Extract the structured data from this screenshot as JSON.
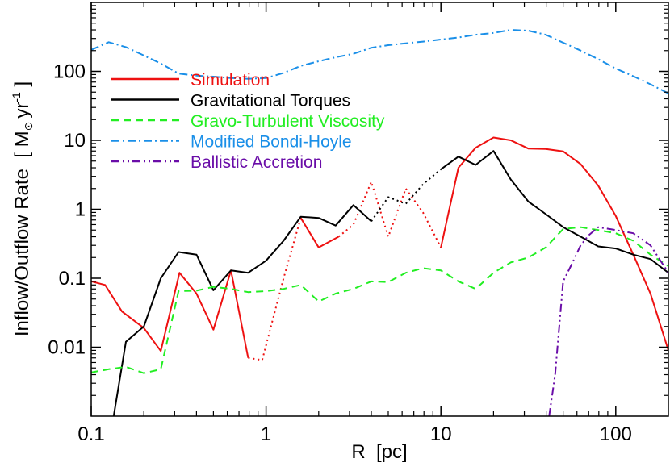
{
  "chart_data": {
    "type": "line",
    "xlabel": "R  [pc]",
    "ylabel_main": "Inflow/Outflow Rate  [ M",
    "ylabel_unit_tail": "yr",
    "ylabel_exponent": "-1",
    "ylabel_close": " ]",
    "xscale": "log",
    "yscale": "log",
    "xlim": [
      0.1,
      200
    ],
    "ylim": [
      0.001,
      1000
    ],
    "x_ticks": [
      {
        "value": 0.1,
        "label": "0.1"
      },
      {
        "value": 1,
        "label": "1"
      },
      {
        "value": 10,
        "label": "10"
      },
      {
        "value": 100,
        "label": "100"
      }
    ],
    "y_ticks": [
      {
        "value": 0.01,
        "label": "0.01"
      },
      {
        "value": 0.1,
        "label": "0.1"
      },
      {
        "value": 1,
        "label": "1"
      },
      {
        "value": 10,
        "label": "10"
      },
      {
        "value": 100,
        "label": "100"
      }
    ],
    "legend_position": "top-left",
    "grid": false,
    "series": [
      {
        "name": "Simulation",
        "color": "#ee1111",
        "dash": "solid",
        "segments": [
          {
            "style": "solid",
            "points": [
              [
                0.1,
                0.09
              ],
              [
                0.12,
                0.08
              ],
              [
                0.15,
                0.033
              ],
              [
                0.2,
                0.019
              ],
              [
                0.25,
                0.0088
              ],
              [
                0.32,
                0.12
              ],
              [
                0.4,
                0.06
              ],
              [
                0.5,
                0.018
              ],
              [
                0.63,
                0.13
              ],
              [
                0.79,
                0.007
              ]
            ]
          },
          {
            "style": "dotted",
            "points": [
              [
                0.79,
                0.007
              ],
              [
                0.95,
                0.0065
              ],
              [
                1.26,
                0.1
              ],
              [
                1.58,
                0.75
              ]
            ]
          },
          {
            "style": "solid",
            "points": [
              [
                1.58,
                0.75
              ],
              [
                2.0,
                0.28
              ],
              [
                2.6,
                0.4
              ]
            ]
          },
          {
            "style": "dotted",
            "points": [
              [
                2.6,
                0.4
              ],
              [
                3.16,
                0.6
              ],
              [
                4.0,
                2.5
              ],
              [
                5.0,
                0.4
              ],
              [
                6.3,
                2.0
              ],
              [
                7.9,
                0.9
              ],
              [
                10.0,
                0.28
              ]
            ]
          },
          {
            "style": "solid",
            "points": [
              [
                10.0,
                0.28
              ],
              [
                12.6,
                4.0
              ],
              [
                15.8,
                7.8
              ],
              [
                20.0,
                11.0
              ],
              [
                25.1,
                10.0
              ],
              [
                31.6,
                7.6
              ],
              [
                39.8,
                7.5
              ],
              [
                50.1,
                6.9
              ],
              [
                63.1,
                4.5
              ],
              [
                79.4,
                2.2
              ],
              [
                100,
                0.8
              ],
              [
                126,
                0.22
              ],
              [
                158,
                0.06
              ],
              [
                200,
                0.009
              ]
            ]
          }
        ]
      },
      {
        "name": "Gravitational Torques",
        "color": "#000000",
        "dash": "solid",
        "segments": [
          {
            "style": "solid",
            "points": [
              [
                0.13,
                0.0006
              ],
              [
                0.158,
                0.012
              ],
              [
                0.2,
                0.02
              ],
              [
                0.25,
                0.1
              ],
              [
                0.316,
                0.24
              ],
              [
                0.4,
                0.22
              ],
              [
                0.5,
                0.067
              ],
              [
                0.63,
                0.13
              ],
              [
                0.79,
                0.12
              ],
              [
                1.0,
                0.18
              ],
              [
                1.26,
                0.35
              ],
              [
                1.58,
                0.78
              ],
              [
                2.0,
                0.75
              ],
              [
                2.5,
                0.58
              ],
              [
                3.16,
                1.15
              ],
              [
                4.0,
                0.67
              ]
            ]
          },
          {
            "style": "dotted",
            "points": [
              [
                4.0,
                0.67
              ],
              [
                5.0,
                1.5
              ],
              [
                6.3,
                1.2
              ],
              [
                7.9,
                2.3
              ],
              [
                10.0,
                3.8
              ]
            ]
          },
          {
            "style": "solid",
            "points": [
              [
                10.0,
                3.8
              ],
              [
                12.6,
                5.8
              ],
              [
                15.8,
                4.4
              ],
              [
                20.0,
                7.0
              ],
              [
                25.1,
                2.7
              ],
              [
                31.6,
                1.3
              ],
              [
                39.8,
                0.85
              ],
              [
                50.1,
                0.55
              ],
              [
                63.1,
                0.4
              ],
              [
                79.4,
                0.29
              ],
              [
                100,
                0.27
              ],
              [
                126,
                0.22
              ],
              [
                158,
                0.19
              ],
              [
                200,
                0.12
              ]
            ]
          }
        ]
      },
      {
        "name": "Gravo-Turbulent Viscosity",
        "color": "#22ee22",
        "dash": "dashed",
        "segments": [
          {
            "style": "dashed",
            "points": [
              [
                0.1,
                0.0043
              ],
              [
                0.126,
                0.0048
              ],
              [
                0.158,
                0.0052
              ],
              [
                0.2,
                0.0042
              ],
              [
                0.25,
                0.0048
              ],
              [
                0.316,
                0.065
              ],
              [
                0.4,
                0.066
              ],
              [
                0.5,
                0.075
              ],
              [
                0.63,
                0.07
              ],
              [
                0.79,
                0.063
              ],
              [
                1.0,
                0.065
              ],
              [
                1.26,
                0.07
              ],
              [
                1.58,
                0.08
              ],
              [
                2.0,
                0.046
              ],
              [
                2.5,
                0.06
              ],
              [
                3.16,
                0.07
              ],
              [
                4.0,
                0.09
              ],
              [
                5.0,
                0.088
              ],
              [
                6.3,
                0.12
              ],
              [
                7.9,
                0.14
              ],
              [
                10.0,
                0.13
              ],
              [
                12.6,
                0.09
              ],
              [
                15.8,
                0.07
              ],
              [
                20.0,
                0.12
              ],
              [
                25.1,
                0.17
              ],
              [
                31.6,
                0.2
              ],
              [
                39.8,
                0.28
              ],
              [
                50.1,
                0.52
              ],
              [
                63.1,
                0.55
              ],
              [
                79.4,
                0.5
              ],
              [
                100,
                0.45
              ],
              [
                126,
                0.35
              ],
              [
                158,
                0.22
              ],
              [
                200,
                0.15
              ]
            ]
          }
        ]
      },
      {
        "name": "Modified Bondi-Hoyle",
        "color": "#1a8fe8",
        "dash": "dashdot",
        "segments": [
          {
            "style": "dashdot",
            "points": [
              [
                0.1,
                205
              ],
              [
                0.126,
                265
              ],
              [
                0.158,
                225
              ],
              [
                0.2,
                170
              ],
              [
                0.25,
                130
              ],
              [
                0.316,
                93
              ],
              [
                0.4,
                87
              ],
              [
                0.5,
                84
              ],
              [
                0.63,
                80
              ],
              [
                0.79,
                78
              ],
              [
                1.0,
                80
              ],
              [
                1.26,
                95
              ],
              [
                1.58,
                120
              ],
              [
                2.0,
                140
              ],
              [
                2.5,
                160
              ],
              [
                3.16,
                180
              ],
              [
                4.0,
                220
              ],
              [
                5.0,
                240
              ],
              [
                6.3,
                255
              ],
              [
                7.9,
                270
              ],
              [
                10.0,
                290
              ],
              [
                12.6,
                310
              ],
              [
                15.8,
                340
              ],
              [
                20.0,
                360
              ],
              [
                25.1,
                400
              ],
              [
                31.6,
                390
              ],
              [
                39.8,
                340
              ],
              [
                50.1,
                260
              ],
              [
                63.1,
                200
              ],
              [
                79.4,
                150
              ],
              [
                100,
                110
              ],
              [
                126,
                85
              ],
              [
                158,
                65
              ],
              [
                200,
                48
              ]
            ]
          }
        ]
      },
      {
        "name": "Ballistic Accretion",
        "color": "#6a0da8",
        "dash": "dashdotdot",
        "segments": [
          {
            "style": "dashdotdot",
            "points": [
              [
                40,
                0.0005
              ],
              [
                45,
                0.004
              ],
              [
                50,
                0.09
              ],
              [
                56,
                0.16
              ],
              [
                63,
                0.3
              ],
              [
                70,
                0.42
              ],
              [
                79.4,
                0.55
              ],
              [
                100,
                0.5
              ],
              [
                126,
                0.45
              ],
              [
                158,
                0.3
              ],
              [
                200,
                0.12
              ]
            ]
          }
        ]
      }
    ]
  }
}
